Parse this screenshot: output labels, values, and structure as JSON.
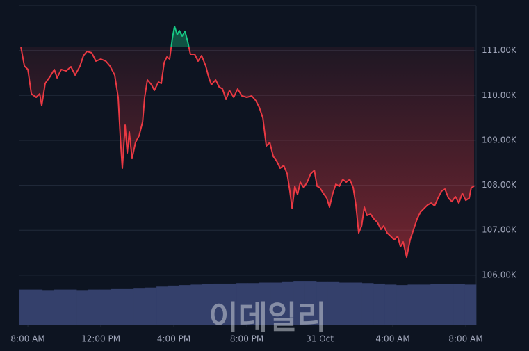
{
  "chart_data": {
    "type": "baseline-line",
    "x": [
      -0.38,
      -0.19,
      0,
      0.19,
      0.46,
      0.65,
      0.76,
      0.95,
      1.22,
      1.45,
      1.6,
      1.83,
      2.1,
      2.36,
      2.59,
      2.86,
      3.05,
      3.24,
      3.5,
      3.73,
      4,
      4.27,
      4.5,
      4.76,
      4.95,
      5.07,
      5.18,
      5.33,
      5.45,
      5.56,
      5.71,
      5.9,
      6.1,
      6.29,
      6.4,
      6.55,
      6.78,
      6.93,
      7.16,
      7.31,
      7.47,
      7.62,
      7.77,
      7.92,
      8.04,
      8.19,
      8.3,
      8.46,
      8.61,
      8.76,
      8.91,
      9.14,
      9.33,
      9.52,
      9.75,
      9.9,
      10.06,
      10.29,
      10.48,
      10.67,
      10.86,
      11.05,
      11.28,
      11.5,
      11.73,
      12,
      12.27,
      12.5,
      12.69,
      12.88,
      13.07,
      13.26,
      13.45,
      13.64,
      13.83,
      14.02,
      14.21,
      14.36,
      14.48,
      14.63,
      14.78,
      14.93,
      15.12,
      15.31,
      15.5,
      15.7,
      15.85,
      16,
      16.19,
      16.38,
      16.53,
      16.69,
      16.88,
      17.07,
      17.26,
      17.45,
      17.64,
      17.83,
      17.98,
      18.13,
      18.29,
      18.44,
      18.59,
      18.78,
      18.97,
      19.16,
      19.35,
      19.5,
      19.69,
      19.89,
      20.08,
      20.27,
      20.42,
      20.57,
      20.76,
      20.95,
      21.14,
      21.33,
      21.52,
      21.71,
      21.9,
      22.1,
      22.29,
      22.48,
      22.67,
      22.86,
      23.05,
      23.24,
      23.43,
      23.62,
      23.81,
      24,
      24.19,
      24.3,
      24.46
    ],
    "values": [
      111072,
      110654,
      110577,
      110035,
      109958,
      110035,
      109772,
      110267,
      110422,
      110577,
      110391,
      110577,
      110546,
      110639,
      110453,
      110654,
      110886,
      110979,
      110948,
      110762,
      110809,
      110762,
      110654,
      110453,
      109958,
      109030,
      108380,
      109339,
      108720,
      109184,
      108596,
      108952,
      109107,
      109416,
      109958,
      110345,
      110236,
      110113,
      110298,
      110267,
      110731,
      110855,
      110809,
      111273,
      111536,
      111351,
      111443,
      111320,
      111428,
      111196,
      110917,
      110917,
      110762,
      110886,
      110654,
      110422,
      110236,
      110345,
      110190,
      110144,
      109912,
      110113,
      109958,
      110144,
      109989,
      109958,
      109989,
      109881,
      109726,
      109494,
      108875,
      108952,
      108643,
      108535,
      108380,
      108442,
      108256,
      107869,
      107483,
      107978,
      107792,
      108070,
      107947,
      108070,
      108256,
      108333,
      107978,
      107947,
      107823,
      107715,
      107514,
      107792,
      108024,
      107978,
      108132,
      108070,
      108132,
      107947,
      107560,
      106941,
      107096,
      107514,
      107328,
      107359,
      107251,
      107174,
      107019,
      107096,
      106941,
      106864,
      106787,
      106864,
      106632,
      106741,
      106400,
      106787,
      107019,
      107251,
      107406,
      107483,
      107560,
      107606,
      107545,
      107715,
      107869,
      107916,
      107715,
      107637,
      107746,
      107606,
      107823,
      107668,
      107715,
      107947,
      107978
    ],
    "up_color": "#16c784",
    "down_color": "#ea3943",
    "xlim": [
      -0.46,
      24.57
    ],
    "xticks": [
      {
        "value": 0,
        "label": "8:00 AM"
      },
      {
        "value": 4,
        "label": "12:00 PM"
      },
      {
        "value": 8,
        "label": "4:00 PM"
      },
      {
        "value": 12,
        "label": "8:00 PM"
      },
      {
        "value": 16,
        "label": "31 Oct"
      },
      {
        "value": 20,
        "label": "4:00 AM"
      },
      {
        "value": 24,
        "label": "8:00 AM"
      }
    ],
    "ylim": [
      104900,
      112000
    ],
    "yticks": [
      {
        "value": 106000,
        "label": "106.00K"
      },
      {
        "value": 107000,
        "label": "107.00K"
      },
      {
        "value": 108000,
        "label": "108.00K"
      },
      {
        "value": 109000,
        "label": "109.00K"
      },
      {
        "value": 110000,
        "label": "110.00K"
      },
      {
        "value": 111000,
        "label": "111.00K"
      }
    ],
    "grid": true,
    "volume": {
      "color": "#34406b",
      "ylim": [
        0,
        100
      ],
      "values": [
        70,
        70,
        69,
        70,
        70,
        69,
        70,
        70,
        71,
        71,
        72,
        74,
        76,
        78,
        79,
        80,
        81,
        82,
        82,
        83,
        83,
        84,
        84,
        85,
        86,
        86,
        85,
        85,
        84,
        84,
        83,
        82,
        80,
        79,
        80,
        80,
        81,
        81,
        81,
        80
      ]
    },
    "watermark": "이데일리"
  }
}
